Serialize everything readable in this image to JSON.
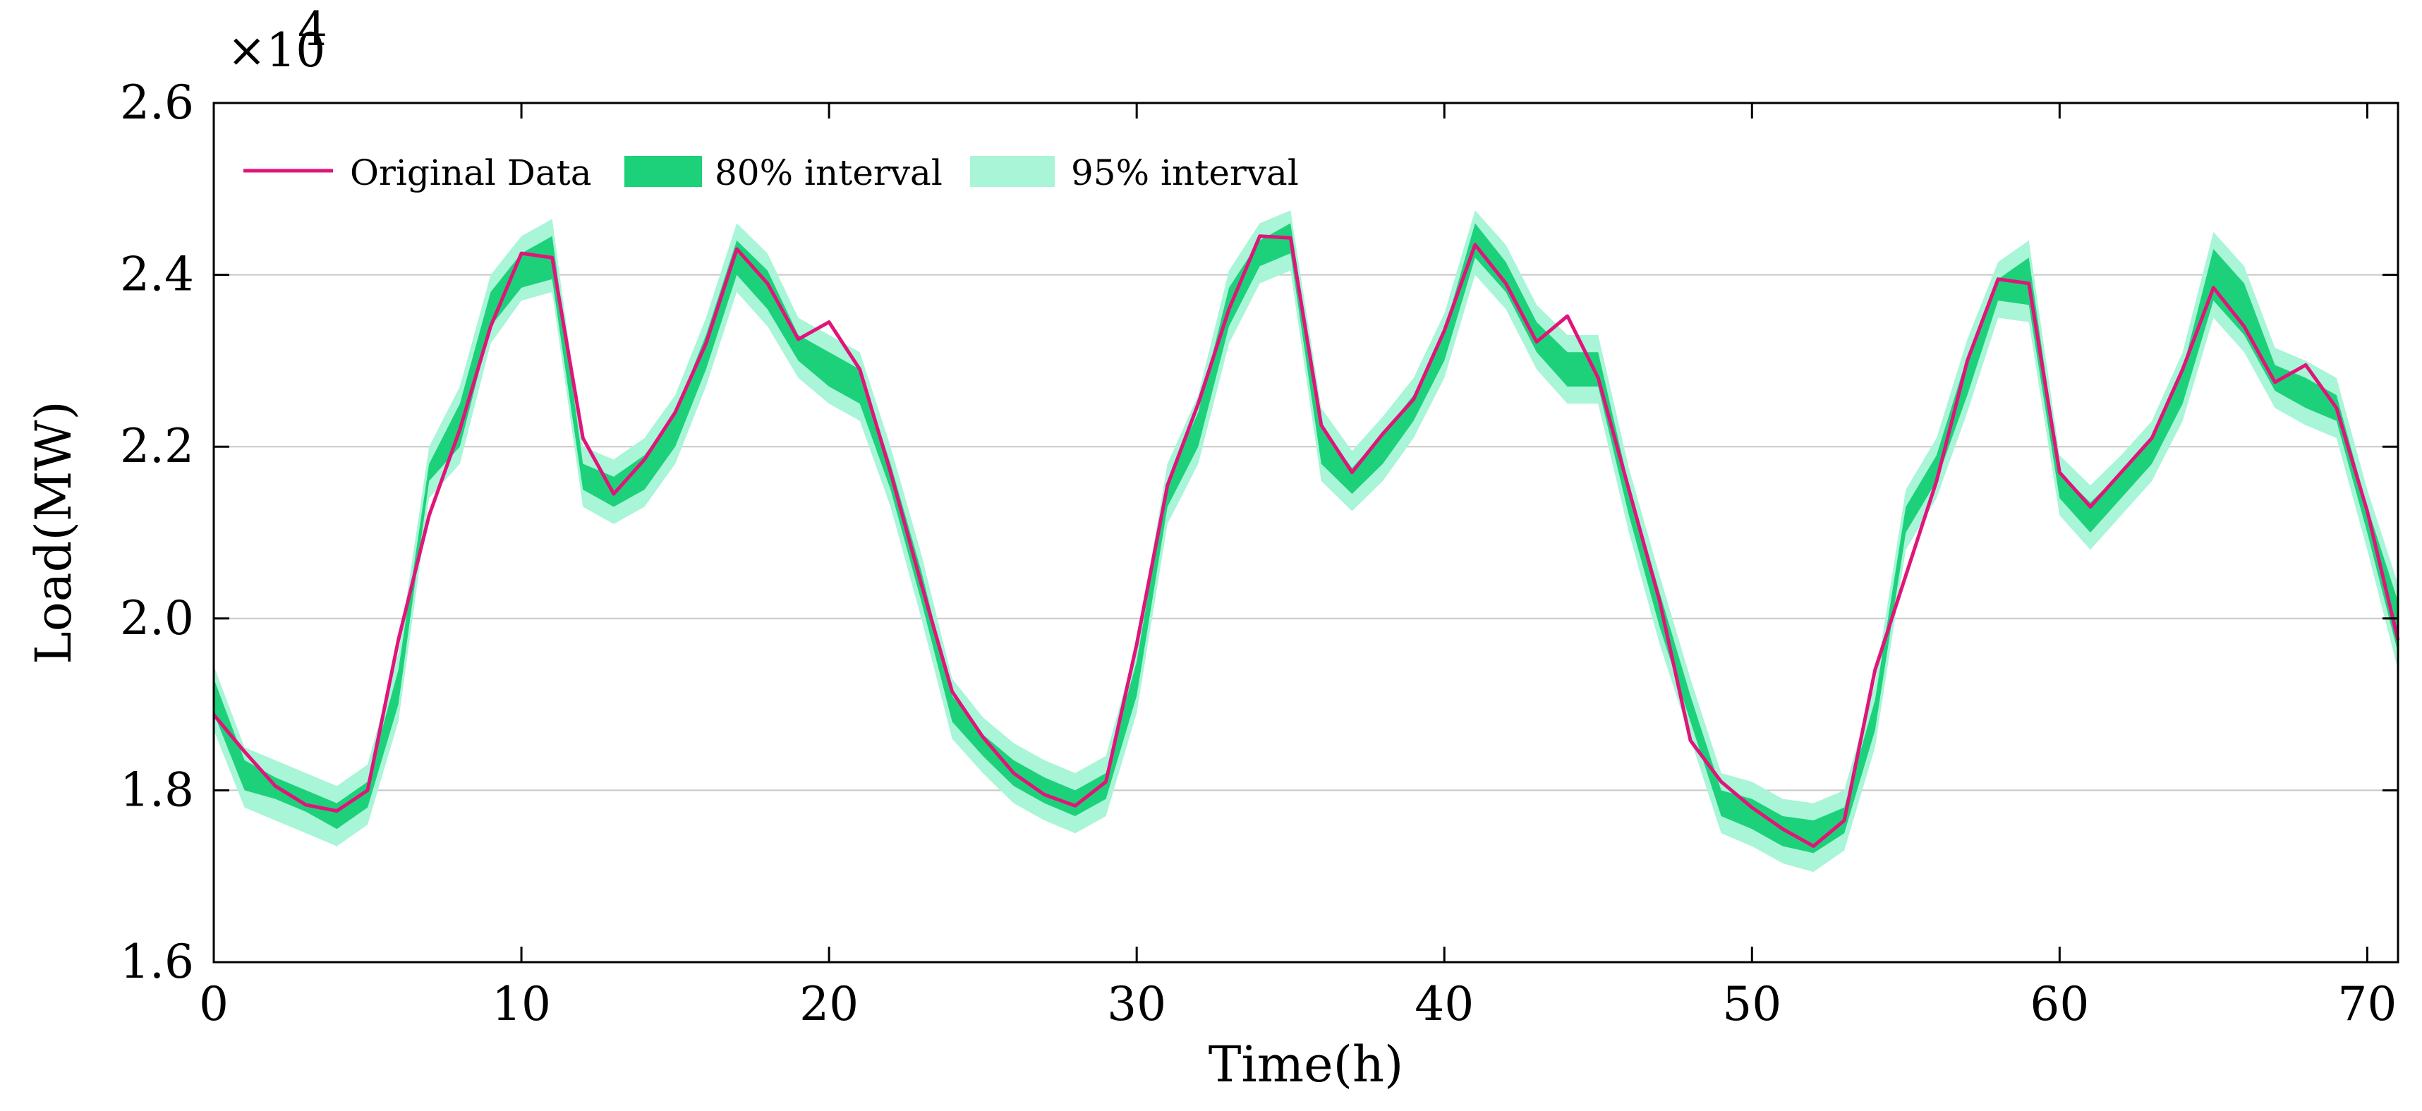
{
  "chart_data": {
    "type": "area",
    "title": "",
    "xlabel": "Time(h)",
    "ylabel": "Load(MW)",
    "y_multiplier_label": "×10",
    "y_multiplier_exp": "4",
    "xlim": [
      0,
      71
    ],
    "ylim": [
      1.6,
      2.6
    ],
    "xticks": [
      0,
      10,
      20,
      30,
      40,
      50,
      60,
      70
    ],
    "yticks": [
      1.6,
      1.8,
      2.0,
      2.2,
      2.4,
      2.6
    ],
    "xtick_labels": [
      "0",
      "10",
      "20",
      "30",
      "40",
      "50",
      "60",
      "70"
    ],
    "ytick_labels": [
      "1.6",
      "1.8",
      "2.0",
      "2.2",
      "2.4",
      "2.6"
    ],
    "grid": "horizontal",
    "legend_position": "top-left",
    "legend": [
      {
        "label": "Original Data",
        "kind": "line",
        "color": "#e0157a"
      },
      {
        "label": "80% interval",
        "kind": "band",
        "color": "#1dd17a"
      },
      {
        "label": "95% interval",
        "kind": "band",
        "color": "#a8f5d8"
      }
    ],
    "x": [
      0,
      1,
      2,
      3,
      4,
      5,
      6,
      7,
      8,
      9,
      10,
      11,
      12,
      13,
      14,
      15,
      16,
      17,
      18,
      19,
      20,
      21,
      22,
      23,
      24,
      25,
      26,
      27,
      28,
      29,
      30,
      31,
      32,
      33,
      34,
      35,
      36,
      37,
      38,
      39,
      40,
      41,
      42,
      43,
      44,
      45,
      46,
      47,
      48,
      49,
      50,
      51,
      52,
      53,
      54,
      55,
      56,
      57,
      58,
      59,
      60,
      61,
      62,
      63,
      64,
      65,
      66,
      67,
      68,
      69,
      70,
      71
    ],
    "series": [
      {
        "name": "Original Data",
        "values": [
          1.888,
          1.845,
          1.805,
          1.783,
          1.776,
          1.8,
          1.975,
          2.12,
          2.22,
          2.34,
          2.425,
          2.42,
          2.21,
          2.145,
          2.185,
          2.24,
          2.32,
          2.43,
          2.39,
          2.325,
          2.345,
          2.29,
          2.17,
          2.04,
          1.915,
          1.862,
          1.82,
          1.795,
          1.782,
          1.81,
          1.97,
          2.155,
          2.25,
          2.36,
          2.445,
          2.443,
          2.225,
          2.17,
          2.215,
          2.255,
          2.335,
          2.435,
          2.39,
          2.322,
          2.352,
          2.28,
          2.15,
          2.02,
          1.858,
          1.81,
          1.78,
          1.755,
          1.735,
          1.765,
          1.94,
          2.05,
          2.16,
          2.3,
          2.395,
          2.39,
          2.17,
          2.13,
          2.17,
          2.21,
          2.29,
          2.385,
          2.34,
          2.275,
          2.295,
          2.245,
          2.125,
          1.975
        ]
      },
      {
        "name": "80% interval",
        "lower": [
          1.89,
          1.8,
          1.79,
          1.775,
          1.755,
          1.78,
          1.9,
          2.16,
          2.2,
          2.34,
          2.385,
          2.395,
          2.15,
          2.13,
          2.15,
          2.2,
          2.29,
          2.4,
          2.36,
          2.3,
          2.27,
          2.25,
          2.15,
          2.02,
          1.88,
          1.84,
          1.805,
          1.785,
          1.77,
          1.79,
          1.91,
          2.13,
          2.2,
          2.34,
          2.41,
          2.425,
          2.18,
          2.145,
          2.18,
          2.23,
          2.3,
          2.42,
          2.38,
          2.31,
          2.27,
          2.27,
          2.12,
          1.99,
          1.88,
          1.77,
          1.755,
          1.735,
          1.727,
          1.75,
          1.87,
          2.1,
          2.16,
          2.26,
          2.37,
          2.365,
          2.14,
          2.1,
          2.14,
          2.18,
          2.25,
          2.37,
          2.33,
          2.265,
          2.245,
          2.23,
          2.1,
          1.96
        ],
        "upper": [
          1.93,
          1.835,
          1.815,
          1.8,
          1.785,
          1.81,
          1.94,
          2.18,
          2.25,
          2.38,
          2.425,
          2.445,
          2.18,
          2.165,
          2.19,
          2.24,
          2.33,
          2.44,
          2.405,
          2.33,
          2.31,
          2.29,
          2.18,
          2.055,
          1.91,
          1.865,
          1.835,
          1.815,
          1.8,
          1.82,
          1.95,
          2.16,
          2.24,
          2.385,
          2.44,
          2.46,
          2.225,
          2.175,
          2.215,
          2.26,
          2.335,
          2.46,
          2.415,
          2.345,
          2.31,
          2.31,
          2.155,
          2.03,
          1.91,
          1.8,
          1.79,
          1.77,
          1.765,
          1.78,
          1.905,
          2.13,
          2.19,
          2.305,
          2.395,
          2.42,
          2.17,
          2.135,
          2.17,
          2.21,
          2.29,
          2.43,
          2.39,
          2.295,
          2.28,
          2.26,
          2.13,
          2.02
        ]
      },
      {
        "name": "95% interval",
        "lower": [
          1.87,
          1.78,
          1.765,
          1.75,
          1.735,
          1.76,
          1.88,
          2.14,
          2.18,
          2.32,
          2.37,
          2.38,
          2.13,
          2.11,
          2.13,
          2.18,
          2.27,
          2.38,
          2.34,
          2.28,
          2.25,
          2.23,
          2.13,
          2.0,
          1.86,
          1.82,
          1.785,
          1.765,
          1.75,
          1.77,
          1.89,
          2.11,
          2.18,
          2.32,
          2.39,
          2.405,
          2.16,
          2.125,
          2.16,
          2.21,
          2.28,
          2.4,
          2.36,
          2.29,
          2.25,
          2.25,
          2.1,
          1.97,
          1.86,
          1.75,
          1.735,
          1.715,
          1.705,
          1.73,
          1.85,
          2.08,
          2.14,
          2.24,
          2.35,
          2.345,
          2.12,
          2.08,
          2.12,
          2.16,
          2.23,
          2.35,
          2.31,
          2.245,
          2.225,
          2.21,
          2.08,
          1.94
        ],
        "upper": [
          1.945,
          1.85,
          1.835,
          1.82,
          1.805,
          1.83,
          1.96,
          2.2,
          2.27,
          2.4,
          2.445,
          2.465,
          2.2,
          2.185,
          2.21,
          2.26,
          2.35,
          2.46,
          2.425,
          2.35,
          2.33,
          2.31,
          2.2,
          2.075,
          1.93,
          1.885,
          1.855,
          1.835,
          1.82,
          1.84,
          1.97,
          2.18,
          2.26,
          2.405,
          2.46,
          2.475,
          2.245,
          2.195,
          2.235,
          2.28,
          2.355,
          2.475,
          2.435,
          2.365,
          2.33,
          2.33,
          2.175,
          2.05,
          1.93,
          1.82,
          1.81,
          1.79,
          1.785,
          1.8,
          1.925,
          2.15,
          2.21,
          2.325,
          2.415,
          2.44,
          2.19,
          2.155,
          2.19,
          2.23,
          2.31,
          2.45,
          2.41,
          2.315,
          2.3,
          2.28,
          2.15,
          2.04
        ]
      }
    ]
  }
}
